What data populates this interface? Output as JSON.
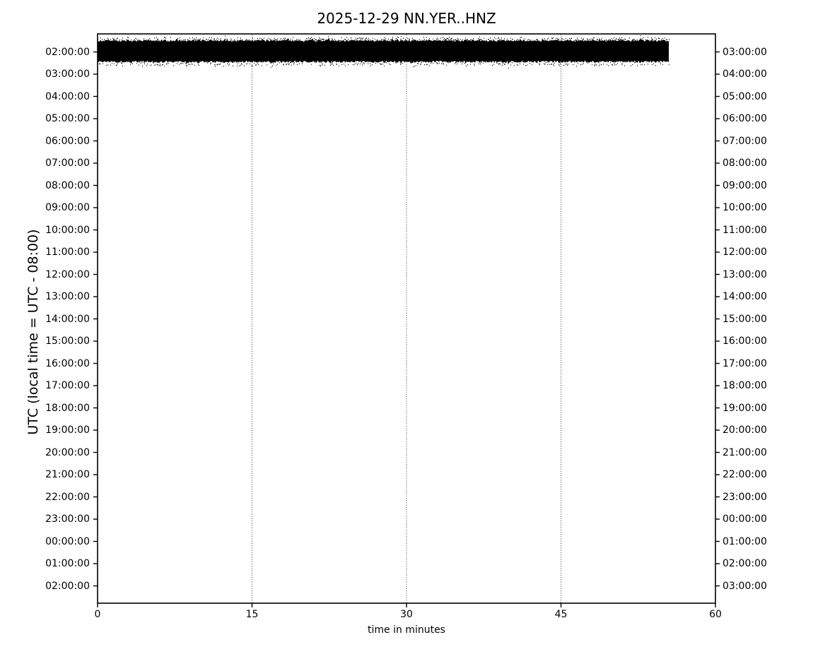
{
  "title": "2025-12-29 NN.YER..HNZ",
  "axes": {
    "x": {
      "label": "time in minutes"
    },
    "y_left": {
      "label": "UTC (local time = UTC - 08:00)"
    }
  },
  "chart_data": {
    "type": "line",
    "subtype": "seismic-helicorder-dayplot",
    "title": "2025-12-29 NN.YER..HNZ",
    "date": "2025-12-29",
    "channel_id": "NN.YER..HNZ",
    "xlabel": "time in minutes",
    "ylabel_left": "UTC (local time = UTC - 08:00)",
    "x_range_minutes": [
      0,
      60
    ],
    "x_tick_minutes": [
      0,
      15,
      30,
      45,
      60
    ],
    "x_tick_labels": [
      "0",
      "15",
      "30",
      "45",
      "60"
    ],
    "minutes_per_line": 60,
    "utc_offset_hours": -8,
    "y_tick_labels_left_utc": [
      "02:00:00",
      "03:00:00",
      "04:00:00",
      "05:00:00",
      "06:00:00",
      "07:00:00",
      "08:00:00",
      "09:00:00",
      "10:00:00",
      "11:00:00",
      "12:00:00",
      "13:00:00",
      "14:00:00",
      "15:00:00",
      "16:00:00",
      "17:00:00",
      "18:00:00",
      "19:00:00",
      "20:00:00",
      "21:00:00",
      "22:00:00",
      "23:00:00",
      "00:00:00",
      "01:00:00",
      "02:00:00"
    ],
    "y_tick_labels_right": [
      "03:00:00",
      "04:00:00",
      "05:00:00",
      "06:00:00",
      "07:00:00",
      "08:00:00",
      "09:00:00",
      "10:00:00",
      "11:00:00",
      "12:00:00",
      "13:00:00",
      "14:00:00",
      "15:00:00",
      "16:00:00",
      "17:00:00",
      "18:00:00",
      "19:00:00",
      "20:00:00",
      "21:00:00",
      "22:00:00",
      "23:00:00",
      "00:00:00",
      "01:00:00",
      "02:00:00",
      "03:00:00"
    ],
    "grid": {
      "vertical_dotted_minutes": [
        15,
        30,
        45
      ],
      "horizontal": false
    },
    "legend": null,
    "series": [
      {
        "name": "NN.YER..HNZ",
        "row_label_utc": "02:00:00",
        "row_index": 0,
        "start_minute": 0.0,
        "end_minute": 55.5,
        "appearance": "clipped-saturated-band",
        "description": "Fully saturated/clipped seismic trace rendered as a solid black band with speckled edges on the first line only; all other lines empty",
        "color": "#000000"
      }
    ],
    "colors": {
      "background": "#ffffff",
      "axes": "#000000",
      "trace": "#000000",
      "grid": "#333333"
    }
  }
}
